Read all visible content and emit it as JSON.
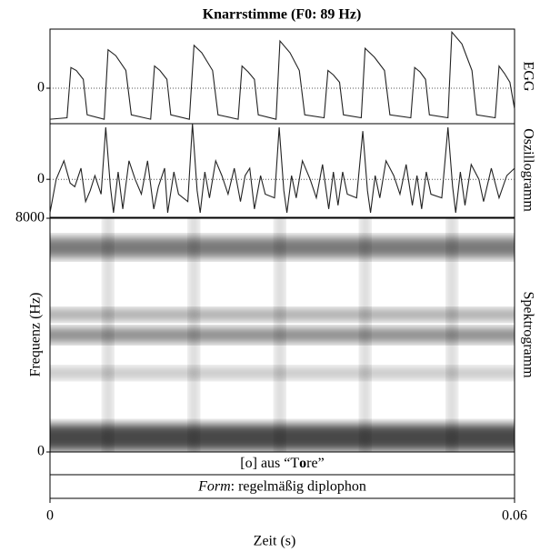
{
  "chart_data": {
    "type": "multi-panel",
    "title": "Knarrstimme (F0: 89 Hz)",
    "xlabel": "Zeit (s)",
    "xlim": [
      0,
      0.06
    ],
    "xticks": [
      0,
      0.06
    ],
    "panels": [
      {
        "type": "line",
        "label": "EGG",
        "ylim": [
          -1.2,
          2
        ],
        "yticks": [
          0
        ],
        "color": "#222",
        "x": [
          0,
          0.0022,
          0.0027,
          0.0034,
          0.0043,
          0.0048,
          0.007,
          0.0075,
          0.0085,
          0.0098,
          0.0105,
          0.013,
          0.0135,
          0.0142,
          0.0151,
          0.0156,
          0.018,
          0.0186,
          0.0196,
          0.021,
          0.0217,
          0.0243,
          0.0248,
          0.0256,
          0.0264,
          0.0269,
          0.0292,
          0.0297,
          0.031,
          0.0322,
          0.0329,
          0.0354,
          0.0359,
          0.0366,
          0.0374,
          0.0379,
          0.0402,
          0.0407,
          0.0419,
          0.0432,
          0.0439,
          0.0466,
          0.0471,
          0.0478,
          0.0485,
          0.049,
          0.0514,
          0.0519,
          0.0532,
          0.0545,
          0.0551,
          0.0575,
          0.058,
          0.0587,
          0.0594,
          0.06
        ],
        "values": [
          -1.05,
          -1.0,
          0.7,
          0.6,
          0.3,
          -0.9,
          -1.05,
          1.3,
          1.1,
          0.6,
          -0.9,
          -1.05,
          0.75,
          0.6,
          0.3,
          -0.9,
          -1.05,
          1.45,
          1.2,
          0.6,
          -0.9,
          -1.05,
          0.75,
          0.55,
          0.3,
          -0.9,
          -1.05,
          1.6,
          1.2,
          0.6,
          -0.9,
          -1.0,
          0.6,
          0.45,
          0.2,
          -0.9,
          -1.0,
          1.35,
          1.05,
          0.6,
          -0.9,
          -1.0,
          0.7,
          0.55,
          0.3,
          -0.9,
          -1.0,
          1.9,
          1.5,
          0.6,
          -0.9,
          -1.0,
          0.75,
          0.5,
          0.2,
          -0.7
        ]
      },
      {
        "type": "line",
        "label": "Oszillogramm",
        "ylim": [
          -1,
          1.5
        ],
        "yticks": [
          0
        ],
        "color": "#222",
        "x": [
          0,
          0.0008,
          0.0018,
          0.0026,
          0.0032,
          0.004,
          0.0046,
          0.0052,
          0.0058,
          0.0066,
          0.0072,
          0.0078,
          0.0082,
          0.0088,
          0.0094,
          0.0102,
          0.011,
          0.0118,
          0.0126,
          0.0134,
          0.014,
          0.0148,
          0.0152,
          0.016,
          0.0166,
          0.0178,
          0.0184,
          0.019,
          0.0194,
          0.02,
          0.0206,
          0.0214,
          0.0222,
          0.023,
          0.0238,
          0.0246,
          0.0252,
          0.0258,
          0.0264,
          0.0272,
          0.0278,
          0.029,
          0.0296,
          0.0302,
          0.0306,
          0.0312,
          0.0318,
          0.0326,
          0.0336,
          0.0344,
          0.0352,
          0.036,
          0.0366,
          0.0372,
          0.0378,
          0.0384,
          0.0396,
          0.0404,
          0.041,
          0.0414,
          0.042,
          0.0426,
          0.0434,
          0.0444,
          0.0452,
          0.046,
          0.0468,
          0.0474,
          0.048,
          0.0486,
          0.0492,
          0.0506,
          0.0514,
          0.052,
          0.0524,
          0.053,
          0.0536,
          0.0544,
          0.0554,
          0.056,
          0.057,
          0.058,
          0.059,
          0.06
        ],
        "values": [
          -0.9,
          0,
          0.5,
          -0.1,
          -0.2,
          0.3,
          -0.6,
          -0.3,
          0.1,
          -0.4,
          1.4,
          -0.2,
          -0.9,
          0.2,
          -0.8,
          0.5,
          0.0,
          -0.4,
          0.5,
          -0.8,
          -0.2,
          0.3,
          -0.9,
          0.2,
          -0.4,
          -0.6,
          1.5,
          -0.3,
          -0.9,
          0.2,
          -0.5,
          0.5,
          0.1,
          -0.4,
          0.3,
          -0.6,
          0.1,
          0.3,
          -0.8,
          0.1,
          -0.4,
          -0.5,
          1.4,
          -0.3,
          -0.9,
          0.1,
          -0.5,
          0.5,
          0.0,
          -0.5,
          0.4,
          -0.8,
          0.2,
          -0.7,
          0.2,
          -0.4,
          -0.5,
          1.3,
          -0.3,
          -0.9,
          0.1,
          -0.5,
          0.5,
          0.1,
          -0.4,
          0.4,
          -0.7,
          0.1,
          -0.8,
          0.2,
          -0.4,
          -0.5,
          1.4,
          -0.2,
          -0.9,
          0.2,
          -0.7,
          0.4,
          0.0,
          -0.6,
          0.3,
          -0.5,
          0.1,
          0.3
        ]
      },
      {
        "type": "spectrogram",
        "label": "Spektrogramm",
        "ylabel": "Frequenz (Hz)",
        "ylim": [
          0,
          8000
        ],
        "yticks": [
          0,
          8000
        ],
        "bands": [
          {
            "freq": 500,
            "width": 900,
            "level": 0.95
          },
          {
            "freq": 2700,
            "width": 400,
            "level": 0.3
          },
          {
            "freq": 4000,
            "width": 500,
            "level": 0.6
          },
          {
            "freq": 4700,
            "width": 400,
            "level": 0.45
          },
          {
            "freq": 7000,
            "width": 700,
            "level": 0.7
          }
        ],
        "pulse_times": [
          0.0075,
          0.0186,
          0.0297,
          0.0407,
          0.0519
        ]
      }
    ],
    "annotations": [
      {
        "parts": [
          {
            "text": "[o] aus “T"
          },
          {
            "text": "o",
            "bold": true
          },
          {
            "text": "re”"
          }
        ]
      },
      {
        "parts": [
          {
            "text": "Form",
            "italic": true
          },
          {
            "text": ": regelmäßig diplophon"
          }
        ]
      }
    ]
  }
}
